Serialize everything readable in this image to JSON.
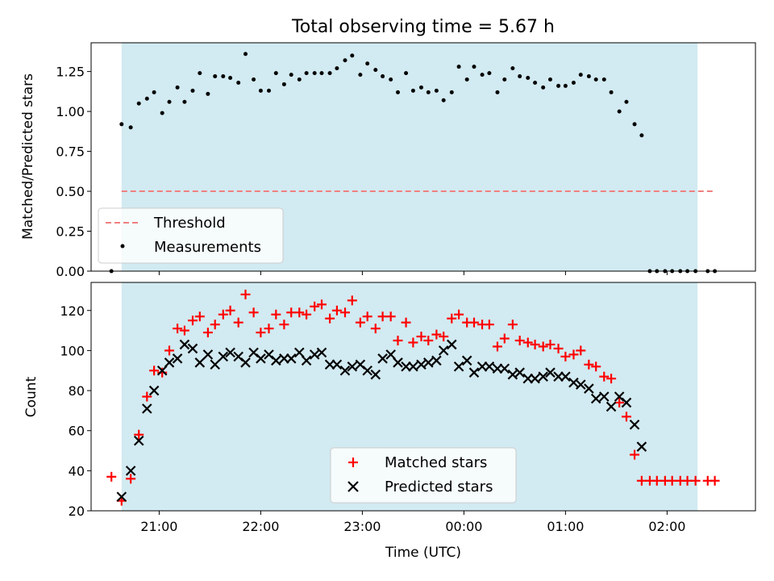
{
  "chart_data": [
    {
      "type": "scatter",
      "title": "Total observing time = 5.67 h",
      "ylabel": "Matched/Predicted stars",
      "xlim": [
        20.33,
        26.87
      ],
      "ylim": [
        0,
        1.43
      ],
      "shaded_x": [
        20.63,
        26.3
      ],
      "yticks": [
        0.0,
        0.25,
        0.5,
        0.75,
        1.0,
        1.25
      ],
      "ytick_labels": [
        "0.00",
        "0.25",
        "0.50",
        "0.75",
        "1.00",
        "1.25"
      ],
      "threshold": {
        "name": "Threshold",
        "y": 0.5,
        "x": [
          20.63,
          26.47
        ],
        "color": "#f08080"
      },
      "series": [
        {
          "name": "Measurements",
          "color": "#000000",
          "x": [
            20.53,
            20.63,
            20.72,
            20.8,
            20.88,
            20.95,
            21.03,
            21.1,
            21.18,
            21.25,
            21.33,
            21.4,
            21.48,
            21.55,
            21.63,
            21.7,
            21.78,
            21.85,
            21.93,
            22.0,
            22.08,
            22.15,
            22.23,
            22.3,
            22.38,
            22.45,
            22.53,
            22.6,
            22.68,
            22.75,
            22.83,
            22.9,
            22.98,
            23.05,
            23.13,
            23.2,
            23.28,
            23.35,
            23.43,
            23.5,
            23.58,
            23.65,
            23.73,
            23.8,
            23.88,
            23.95,
            24.03,
            24.1,
            24.18,
            24.25,
            24.33,
            24.4,
            24.48,
            24.55,
            24.63,
            24.7,
            24.78,
            24.85,
            24.93,
            25.0,
            25.08,
            25.15,
            25.23,
            25.3,
            25.38,
            25.45,
            25.53,
            25.6,
            25.68,
            25.75,
            25.83,
            25.9,
            25.98,
            26.05,
            26.13,
            26.2,
            26.28,
            26.4,
            26.47
          ],
          "y": [
            0.0,
            0.92,
            0.9,
            1.05,
            1.08,
            1.12,
            0.99,
            1.06,
            1.15,
            1.06,
            1.13,
            1.24,
            1.11,
            1.22,
            1.22,
            1.21,
            1.18,
            1.36,
            1.2,
            1.13,
            1.13,
            1.24,
            1.17,
            1.23,
            1.2,
            1.24,
            1.24,
            1.24,
            1.24,
            1.27,
            1.32,
            1.35,
            1.23,
            1.3,
            1.26,
            1.22,
            1.2,
            1.12,
            1.24,
            1.13,
            1.15,
            1.12,
            1.13,
            1.07,
            1.12,
            1.28,
            1.2,
            1.28,
            1.23,
            1.24,
            1.12,
            1.2,
            1.27,
            1.22,
            1.21,
            1.18,
            1.15,
            1.2,
            1.16,
            1.16,
            1.18,
            1.23,
            1.22,
            1.2,
            1.2,
            1.12,
            1.0,
            1.06,
            0.92,
            0.85,
            0.0,
            0.0,
            0.0,
            0.0,
            0.0,
            0.0,
            0.0,
            0.0,
            0.0
          ]
        }
      ],
      "legend": {
        "location": "lower left",
        "entries": [
          "Threshold",
          "Measurements"
        ]
      }
    },
    {
      "type": "scatter",
      "ylabel": "Count",
      "xlabel": "Time (UTC)",
      "xlim": [
        20.33,
        26.87
      ],
      "ylim": [
        20,
        134
      ],
      "shaded_x": [
        20.63,
        26.3
      ],
      "yticks": [
        20,
        40,
        60,
        80,
        100,
        120
      ],
      "ytick_labels": [
        "20",
        "40",
        "60",
        "80",
        "100",
        "120"
      ],
      "xticks": [
        21,
        22,
        23,
        24,
        25,
        26
      ],
      "xtick_labels": [
        "21:00",
        "22:00",
        "23:00",
        "00:00",
        "01:00",
        "02:00"
      ],
      "series": [
        {
          "name": "Matched stars",
          "color": "#ff0000",
          "marker": "plus",
          "x": [
            20.53,
            20.63,
            20.72,
            20.8,
            20.88,
            20.95,
            21.03,
            21.1,
            21.18,
            21.25,
            21.33,
            21.4,
            21.48,
            21.55,
            21.63,
            21.7,
            21.78,
            21.85,
            21.93,
            22.0,
            22.08,
            22.15,
            22.23,
            22.3,
            22.38,
            22.45,
            22.53,
            22.6,
            22.68,
            22.75,
            22.83,
            22.9,
            22.98,
            23.05,
            23.13,
            23.2,
            23.28,
            23.35,
            23.43,
            23.5,
            23.58,
            23.65,
            23.73,
            23.8,
            23.88,
            23.95,
            24.03,
            24.1,
            24.18,
            24.25,
            24.33,
            24.4,
            24.48,
            24.55,
            24.63,
            24.7,
            24.78,
            24.85,
            24.93,
            25.0,
            25.08,
            25.15,
            25.23,
            25.3,
            25.38,
            25.45,
            25.53,
            25.6,
            25.68,
            25.75,
            25.83,
            25.9,
            25.98,
            26.05,
            26.13,
            26.2,
            26.28,
            26.4,
            26.47
          ],
          "y": [
            37,
            25,
            36,
            58,
            77,
            90,
            89,
            100,
            111,
            110,
            115,
            117,
            109,
            113,
            118,
            120,
            114,
            128,
            119,
            109,
            111,
            118,
            113,
            119,
            119,
            118,
            122,
            123,
            116,
            120,
            119,
            125,
            114,
            117,
            111,
            117,
            117,
            105,
            114,
            104,
            107,
            105,
            108,
            107,
            116,
            118,
            114,
            114,
            113,
            113,
            102,
            106,
            113,
            105,
            104,
            103,
            102,
            103,
            101,
            97,
            98,
            100,
            93,
            92,
            87,
            86,
            74,
            67,
            48,
            35,
            35,
            35,
            35,
            35,
            35,
            35,
            35,
            35,
            35
          ]
        },
        {
          "name": "Predicted stars",
          "color": "#000000",
          "marker": "x",
          "x": [
            20.63,
            20.72,
            20.8,
            20.88,
            20.95,
            21.03,
            21.1,
            21.18,
            21.25,
            21.33,
            21.4,
            21.48,
            21.55,
            21.63,
            21.7,
            21.78,
            21.85,
            21.93,
            22.0,
            22.08,
            22.15,
            22.23,
            22.3,
            22.38,
            22.45,
            22.53,
            22.6,
            22.68,
            22.75,
            22.83,
            22.9,
            22.98,
            23.05,
            23.13,
            23.2,
            23.28,
            23.35,
            23.43,
            23.5,
            23.58,
            23.65,
            23.73,
            23.8,
            23.88,
            23.95,
            24.03,
            24.1,
            24.18,
            24.25,
            24.33,
            24.4,
            24.48,
            24.55,
            24.63,
            24.7,
            24.78,
            24.85,
            24.93,
            25.0,
            25.08,
            25.15,
            25.23,
            25.3,
            25.38,
            25.45,
            25.53,
            25.6,
            25.68,
            25.75
          ],
          "y": [
            27,
            40,
            55,
            71,
            80,
            90,
            94,
            96,
            103,
            101,
            94,
            98,
            93,
            97,
            99,
            97,
            94,
            99,
            96,
            98,
            95,
            96,
            96,
            99,
            95,
            98,
            99,
            93,
            93,
            90,
            92,
            93,
            90,
            88,
            96,
            98,
            94,
            92,
            92,
            93,
            94,
            95,
            100,
            103,
            92,
            95,
            89,
            92,
            92,
            91,
            91,
            88,
            89,
            86,
            86,
            87,
            89,
            87,
            87,
            84,
            83,
            81,
            76,
            77,
            72,
            77,
            74,
            63,
            52
          ]
        }
      ],
      "legend": {
        "location": "lower center",
        "entries": [
          "Matched stars",
          "Predicted stars"
        ]
      }
    }
  ]
}
